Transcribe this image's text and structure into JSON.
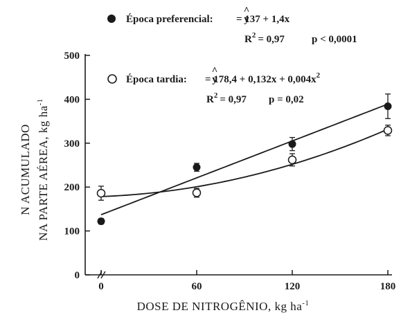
{
  "chart_data": {
    "type": "scatter",
    "xlabel": "DOSE DE NITROGÊNIO, kg ha",
    "xlabel_sup": "-1",
    "ylabel_line1": "N ACUMULADO",
    "ylabel_line2": "NA PARTE AÉREA, kg ha",
    "ylabel_sup": "-1",
    "xlim": [
      0,
      180
    ],
    "ylim": [
      0,
      500
    ],
    "xticks": [
      0,
      60,
      120,
      180
    ],
    "yticks": [
      0,
      100,
      200,
      300,
      400,
      500
    ],
    "axis_break": "//",
    "grid": false,
    "series": [
      {
        "name": "Época preferencial",
        "marker": "filled-circle",
        "color": "#1a1a1a",
        "x": [
          0,
          60,
          120,
          180
        ],
        "y": [
          122,
          245,
          298,
          384
        ],
        "err": [
          6,
          9,
          15,
          28
        ],
        "fit": {
          "type": "linear",
          "a": 137,
          "b": 1.4,
          "c": 0
        },
        "equation_prefix": "Época preferencial:",
        "equation": "=  137 + 1,4x",
        "r2_label": "R",
        "r2_value": "= 0,97",
        "p_text": "p < 0,0001"
      },
      {
        "name": "Época tardia",
        "marker": "open-circle",
        "color": "#1a1a1a",
        "x": [
          0,
          60,
          120,
          180
        ],
        "y": [
          186,
          187,
          262,
          329
        ],
        "err": [
          16,
          10,
          14,
          12
        ],
        "fit": {
          "type": "quadratic",
          "a": 178.4,
          "b": 0.132,
          "c": 0.004
        },
        "equation_prefix": "Época tardia:",
        "equation": "=  178,4 + 0,132x + 0,004x",
        "r2_label": "R",
        "r2_value": "= 0,97",
        "p_text": "p = 0,02"
      }
    ],
    "yhat": "y",
    "sup2": "2"
  }
}
